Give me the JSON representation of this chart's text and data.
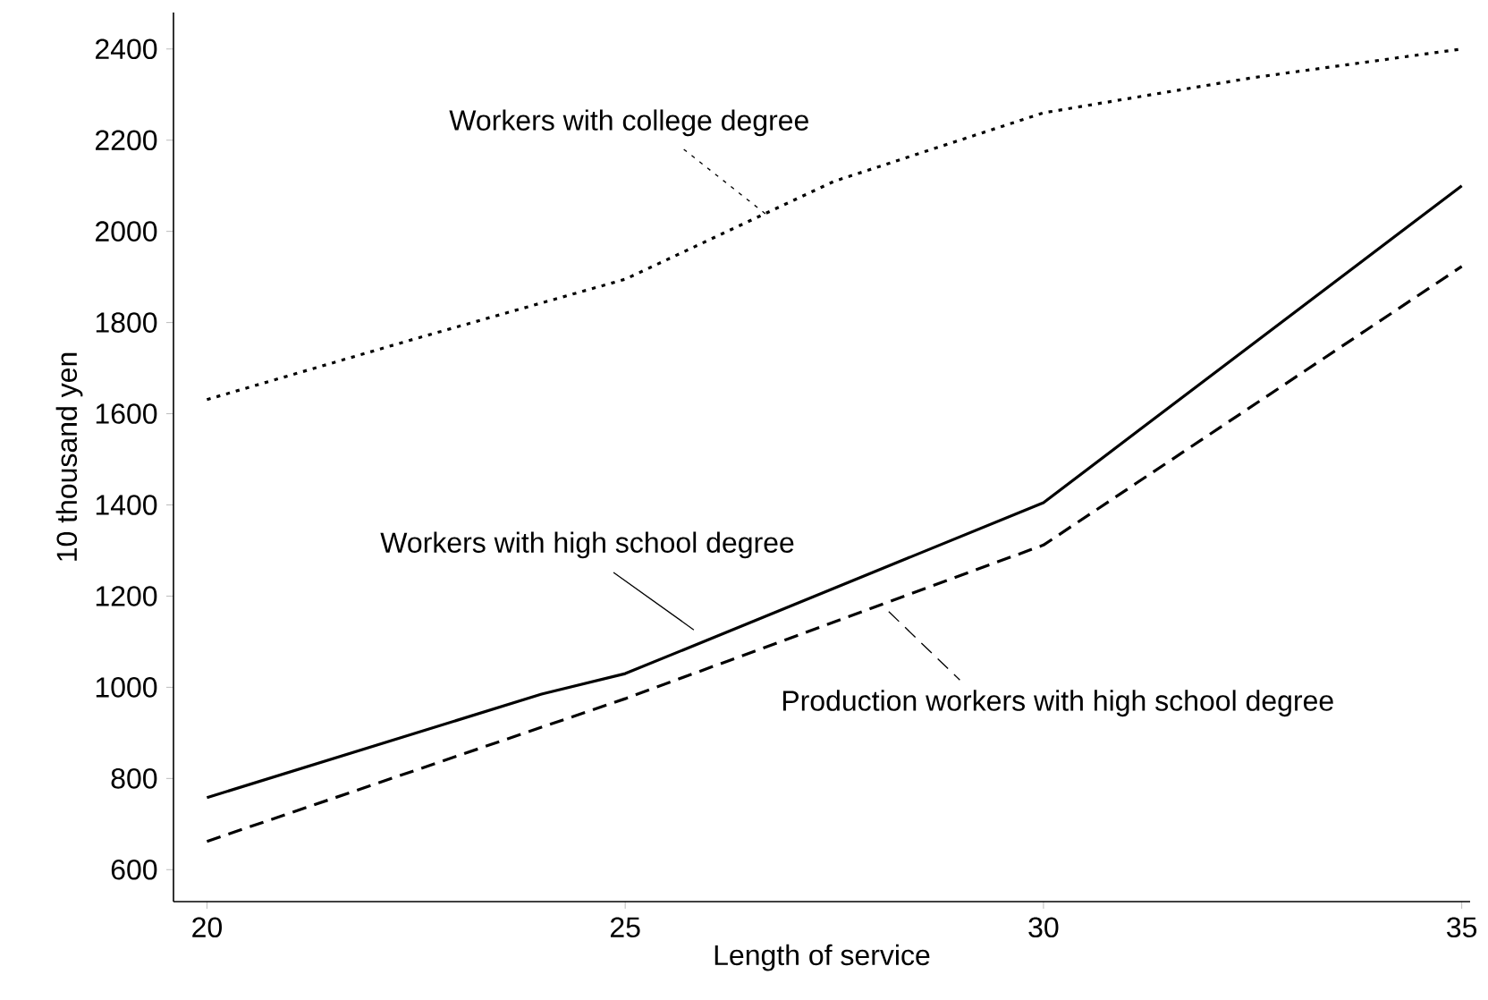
{
  "chart_data": {
    "type": "line",
    "xlabel": "Length of service",
    "ylabel": "10 thousand yen",
    "xlim": [
      19.6,
      35.1
    ],
    "ylim": [
      530,
      2480
    ],
    "xticks": [
      20,
      25,
      30,
      35
    ],
    "yticks": [
      600,
      800,
      1000,
      1200,
      1400,
      1600,
      1800,
      2000,
      2200,
      2400
    ],
    "marker": "none",
    "series": [
      {
        "name": "Workers with college degree",
        "color": "#000000",
        "line_style": "dotted",
        "x": [
          20,
          22.5,
          25,
          27.5,
          30,
          32.5,
          35
        ],
        "values": [
          1631,
          1765,
          1895,
          2110,
          2260,
          2337,
          2400
        ]
      },
      {
        "name": "Workers with high school degree",
        "color": "#000000",
        "line_style": "solid",
        "x": [
          20,
          24,
          25,
          30,
          35
        ],
        "values": [
          758,
          985,
          1030,
          1405,
          2100
        ]
      },
      {
        "name": "Production workers with high school degree",
        "color": "#000000",
        "line_style": "dashed",
        "x": [
          20,
          25,
          30,
          35
        ],
        "values": [
          662,
          975,
          1312,
          1923
        ]
      }
    ]
  }
}
